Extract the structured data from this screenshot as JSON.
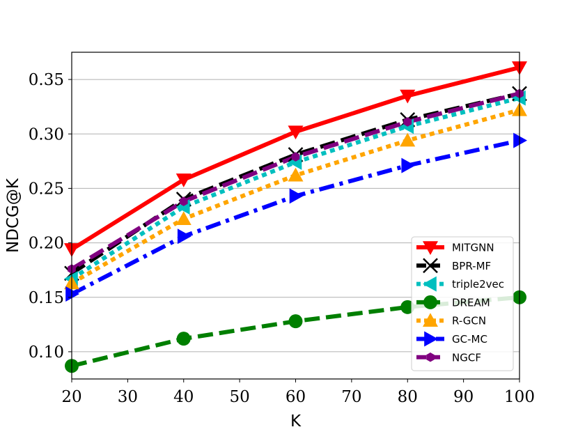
{
  "chart_data": {
    "type": "line",
    "xlabel": "K",
    "ylabel": "NDCG@K",
    "xlim": [
      20,
      100
    ],
    "ylim": [
      0.075,
      0.375
    ],
    "xticks": [
      20,
      30,
      40,
      50,
      60,
      70,
      80,
      90,
      100
    ],
    "xtick_labels": [
      "20",
      "30",
      "40",
      "50",
      "60",
      "70",
      "80",
      "90",
      "100"
    ],
    "yticks": [
      0.1,
      0.15,
      0.2,
      0.25,
      0.3,
      0.35
    ],
    "ytick_labels": [
      "0.10",
      "0.15",
      "0.20",
      "0.25",
      "0.30",
      "0.35"
    ],
    "grid": "horizontal",
    "legend_position": "lower-right",
    "x": [
      20,
      40,
      60,
      80,
      100
    ],
    "series": [
      {
        "name": "MITGNN",
        "values": [
          0.194,
          0.258,
          0.302,
          0.335,
          0.361
        ],
        "color": "#ff0000",
        "dash": "solid",
        "marker": "triangle-down"
      },
      {
        "name": "BPR-MF",
        "values": [
          0.172,
          0.24,
          0.281,
          0.313,
          0.337
        ],
        "color": "#000000",
        "dash": "dashed",
        "marker": "x"
      },
      {
        "name": "triple2vec",
        "values": [
          0.167,
          0.233,
          0.274,
          0.307,
          0.333
        ],
        "color": "#00bfbf",
        "dash": "dotted",
        "marker": "triangle-left"
      },
      {
        "name": "DREAM",
        "values": [
          0.087,
          0.112,
          0.128,
          0.141,
          0.15
        ],
        "color": "#007f00",
        "dash": "dashed",
        "marker": "circle"
      },
      {
        "name": "R-GCN",
        "values": [
          0.163,
          0.222,
          0.262,
          0.294,
          0.322
        ],
        "color": "#ffa500",
        "dash": "dotted",
        "marker": "triangle-up"
      },
      {
        "name": "GC-MC",
        "values": [
          0.153,
          0.206,
          0.243,
          0.271,
          0.294
        ],
        "color": "#0000ff",
        "dash": "dashdot",
        "marker": "triangle-right"
      },
      {
        "name": "NGCF",
        "values": [
          0.176,
          0.238,
          0.279,
          0.311,
          0.337
        ],
        "color": "#800080",
        "dash": "dashed",
        "marker": "hexagon"
      }
    ]
  }
}
